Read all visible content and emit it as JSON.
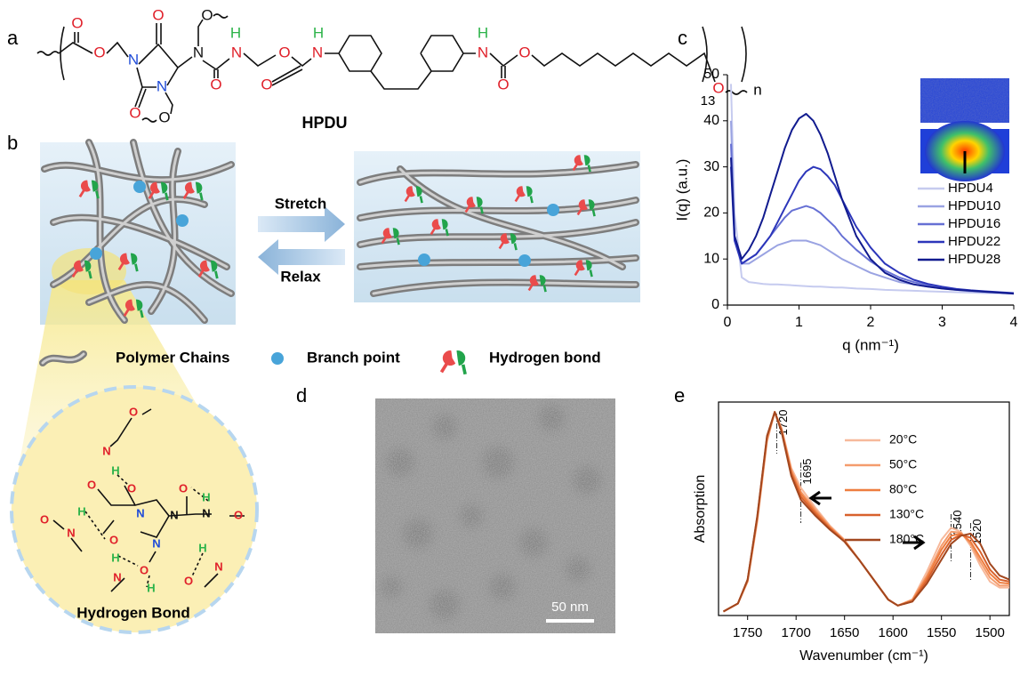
{
  "panel_labels": [
    "a",
    "b",
    "c",
    "d",
    "e"
  ],
  "panel_a": {
    "caption": "HPDU",
    "repeat_inner": "13",
    "repeat_outer": "n",
    "atoms": [
      "O",
      "O",
      "N",
      "O",
      "N",
      "O",
      "O",
      "N",
      "O",
      "H",
      "N",
      "O",
      "O",
      "O",
      "H",
      "N",
      "H",
      "N",
      "O",
      "O",
      "O"
    ]
  },
  "panel_b": {
    "stretch": "Stretch",
    "relax": "Relax",
    "legend": [
      "Polymer Chains",
      "Branch point",
      "Hydrogen bond"
    ],
    "zoom_title": "Hydrogen Bond",
    "zoom_atoms": [
      "O",
      "N",
      "H",
      "O",
      "O",
      "N",
      "N",
      "O",
      "N",
      "O",
      "N",
      "H",
      "O",
      "H",
      "N",
      "O",
      "H",
      "O",
      "H",
      "H",
      "N",
      "O",
      "N"
    ]
  },
  "panel_d": {
    "scale_bar": "50 nm"
  },
  "chart_data": [
    {
      "type": "line",
      "xlabel": "q (nm⁻¹)",
      "ylabel": "I(q) (a.u.)",
      "xlim": [
        0,
        4
      ],
      "ylim": [
        0,
        50
      ],
      "xticks": [
        0,
        1,
        2,
        3,
        4
      ],
      "yticks": [
        0,
        10,
        20,
        30,
        40,
        50
      ],
      "legend": "upper right",
      "x": [
        0.05,
        0.1,
        0.2,
        0.3,
        0.4,
        0.5,
        0.6,
        0.7,
        0.8,
        0.9,
        1.0,
        1.1,
        1.2,
        1.3,
        1.4,
        1.5,
        1.6,
        1.8,
        2.0,
        2.2,
        2.4,
        2.6,
        2.8,
        3.0,
        3.2,
        3.4,
        3.6,
        3.8,
        4.0
      ],
      "series": [
        {
          "name": "HPDU4",
          "color": "#c6cbef",
          "values": [
            48,
            20,
            6,
            5,
            4.8,
            4.6,
            4.5,
            4.5,
            4.4,
            4.3,
            4.2,
            4.1,
            4,
            4,
            3.9,
            3.8,
            3.8,
            3.6,
            3.5,
            3.3,
            3.2,
            3.1,
            3,
            2.9,
            2.8,
            2.7,
            2.6,
            2.6,
            2.5
          ]
        },
        {
          "name": "HPDU10",
          "color": "#9aa3e2",
          "values": [
            40,
            15,
            9,
            9,
            10,
            11,
            12,
            13,
            13.5,
            14,
            14,
            14,
            13.5,
            13,
            12,
            11,
            10,
            8.5,
            7,
            6,
            5,
            4.5,
            4,
            3.6,
            3.3,
            3,
            2.8,
            2.6,
            2.5
          ]
        },
        {
          "name": "HPDU16",
          "color": "#6670d4",
          "values": [
            35,
            15,
            9,
            10,
            11,
            13,
            15,
            17,
            19,
            20.5,
            21,
            21.5,
            21,
            20,
            18.5,
            17,
            15,
            12,
            9.5,
            7.5,
            6,
            5,
            4.3,
            3.8,
            3.4,
            3.1,
            2.9,
            2.7,
            2.5
          ]
        },
        {
          "name": "HPDU22",
          "color": "#2c36ba",
          "values": [
            30,
            14,
            9,
            10,
            11,
            13,
            15,
            18,
            21,
            24,
            27,
            29,
            30,
            29.5,
            28,
            26,
            23,
            17,
            12.5,
            9,
            7,
            5.5,
            4.6,
            4,
            3.5,
            3.2,
            3,
            2.8,
            2.6
          ]
        },
        {
          "name": "HPDU28",
          "color": "#111b8f",
          "values": [
            32,
            15,
            10,
            12,
            15,
            19,
            24,
            29,
            34,
            38,
            40.5,
            41.5,
            40,
            37,
            33,
            28,
            23,
            15,
            10,
            7,
            5.5,
            4.5,
            4,
            3.6,
            3.3,
            3.1,
            2.9,
            2.7,
            2.5
          ]
        }
      ]
    },
    {
      "type": "line",
      "xlabel": "Wavenumber (cm⁻¹)",
      "ylabel": "Absorption",
      "xlim": [
        1780,
        1480
      ],
      "ylim": [
        -0.02,
        1.05
      ],
      "xticks": [
        1750,
        1700,
        1650,
        1600,
        1550,
        1500
      ],
      "legend": "upper right",
      "x": [
        1775,
        1760,
        1750,
        1740,
        1730,
        1722,
        1715,
        1705,
        1695,
        1680,
        1665,
        1650,
        1635,
        1620,
        1605,
        1595,
        1580,
        1565,
        1550,
        1540,
        1530,
        1520,
        1510,
        1500,
        1490,
        1480
      ],
      "annotations": [
        1720,
        1695,
        1540,
        1520
      ],
      "series": [
        {
          "name": "20°C",
          "color": "#f7b99b",
          "values": [
            0,
            0.04,
            0.15,
            0.45,
            0.85,
            1.0,
            0.92,
            0.72,
            0.62,
            0.52,
            0.43,
            0.36,
            0.26,
            0.16,
            0.06,
            0.03,
            0.06,
            0.2,
            0.36,
            0.42,
            0.4,
            0.33,
            0.23,
            0.15,
            0.12,
            0.12
          ]
        },
        {
          "name": "50°C",
          "color": "#f49c6d",
          "values": [
            0,
            0.04,
            0.15,
            0.46,
            0.86,
            1.0,
            0.915,
            0.71,
            0.6,
            0.51,
            0.425,
            0.355,
            0.26,
            0.16,
            0.06,
            0.03,
            0.06,
            0.18,
            0.33,
            0.4,
            0.395,
            0.34,
            0.25,
            0.17,
            0.13,
            0.13
          ]
        },
        {
          "name": "80°C",
          "color": "#ee7d3f",
          "values": [
            0,
            0.04,
            0.155,
            0.47,
            0.87,
            1.0,
            0.91,
            0.7,
            0.59,
            0.5,
            0.42,
            0.355,
            0.26,
            0.16,
            0.06,
            0.03,
            0.055,
            0.17,
            0.31,
            0.38,
            0.39,
            0.35,
            0.27,
            0.19,
            0.145,
            0.14
          ]
        },
        {
          "name": "130°C",
          "color": "#d8612c",
          "values": [
            0,
            0.04,
            0.16,
            0.475,
            0.875,
            1.0,
            0.905,
            0.69,
            0.575,
            0.49,
            0.415,
            0.35,
            0.26,
            0.16,
            0.06,
            0.03,
            0.05,
            0.155,
            0.285,
            0.36,
            0.385,
            0.37,
            0.3,
            0.21,
            0.16,
            0.15
          ]
        },
        {
          "name": "180°C",
          "color": "#a2471f",
          "values": [
            0,
            0.04,
            0.16,
            0.48,
            0.88,
            1.0,
            0.9,
            0.68,
            0.56,
            0.48,
            0.41,
            0.35,
            0.26,
            0.16,
            0.06,
            0.03,
            0.05,
            0.14,
            0.26,
            0.34,
            0.38,
            0.39,
            0.34,
            0.24,
            0.18,
            0.16
          ]
        }
      ]
    }
  ]
}
